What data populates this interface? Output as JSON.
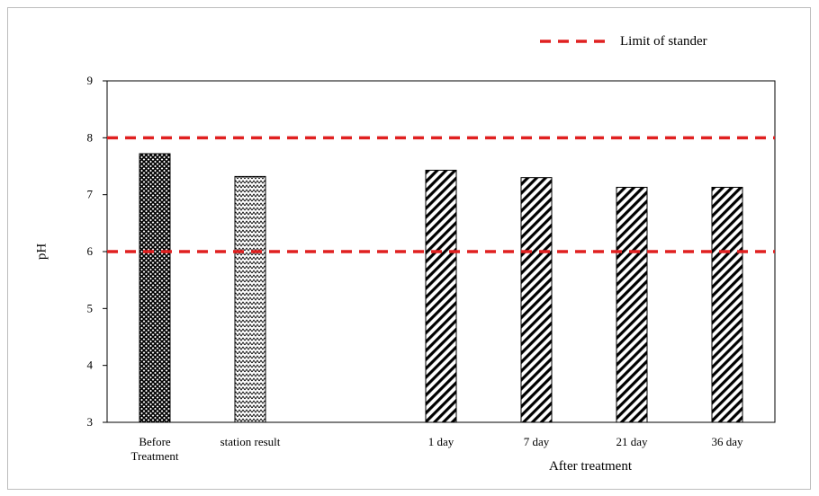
{
  "chart_data": {
    "type": "bar",
    "title": "",
    "ylabel": "pH",
    "xlabel": "",
    "ylim": [
      3,
      9
    ],
    "yticks": [
      3,
      4,
      5,
      6,
      7,
      8,
      9
    ],
    "categories": [
      {
        "label_lines": [
          "Before",
          "Treatment"
        ],
        "value": 7.72,
        "pattern": "crosshatch"
      },
      {
        "label_lines": [
          "station result"
        ],
        "value": 7.32,
        "pattern": "zigzag"
      },
      {
        "label_lines": [
          ""
        ],
        "value": null,
        "pattern": "none"
      },
      {
        "label_lines": [
          "1 day"
        ],
        "value": 7.43,
        "pattern": "diagonal"
      },
      {
        "label_lines": [
          "7 day"
        ],
        "value": 7.3,
        "pattern": "diagonal"
      },
      {
        "label_lines": [
          "21 day"
        ],
        "value": 7.13,
        "pattern": "diagonal"
      },
      {
        "label_lines": [
          "36 day"
        ],
        "value": 7.13,
        "pattern": "diagonal"
      }
    ],
    "group_label": "After treatment",
    "group_categories": [
      "1 day",
      "7 day",
      "21 day",
      "36 day"
    ],
    "reference_lines": [
      {
        "value": 8,
        "color": "#e02020",
        "style": "dashed"
      },
      {
        "value": 6,
        "color": "#e02020",
        "style": "dashed"
      }
    ],
    "legend": {
      "label": "Limit of stander",
      "position": "top-right",
      "color": "#e02020"
    },
    "grid": false
  }
}
